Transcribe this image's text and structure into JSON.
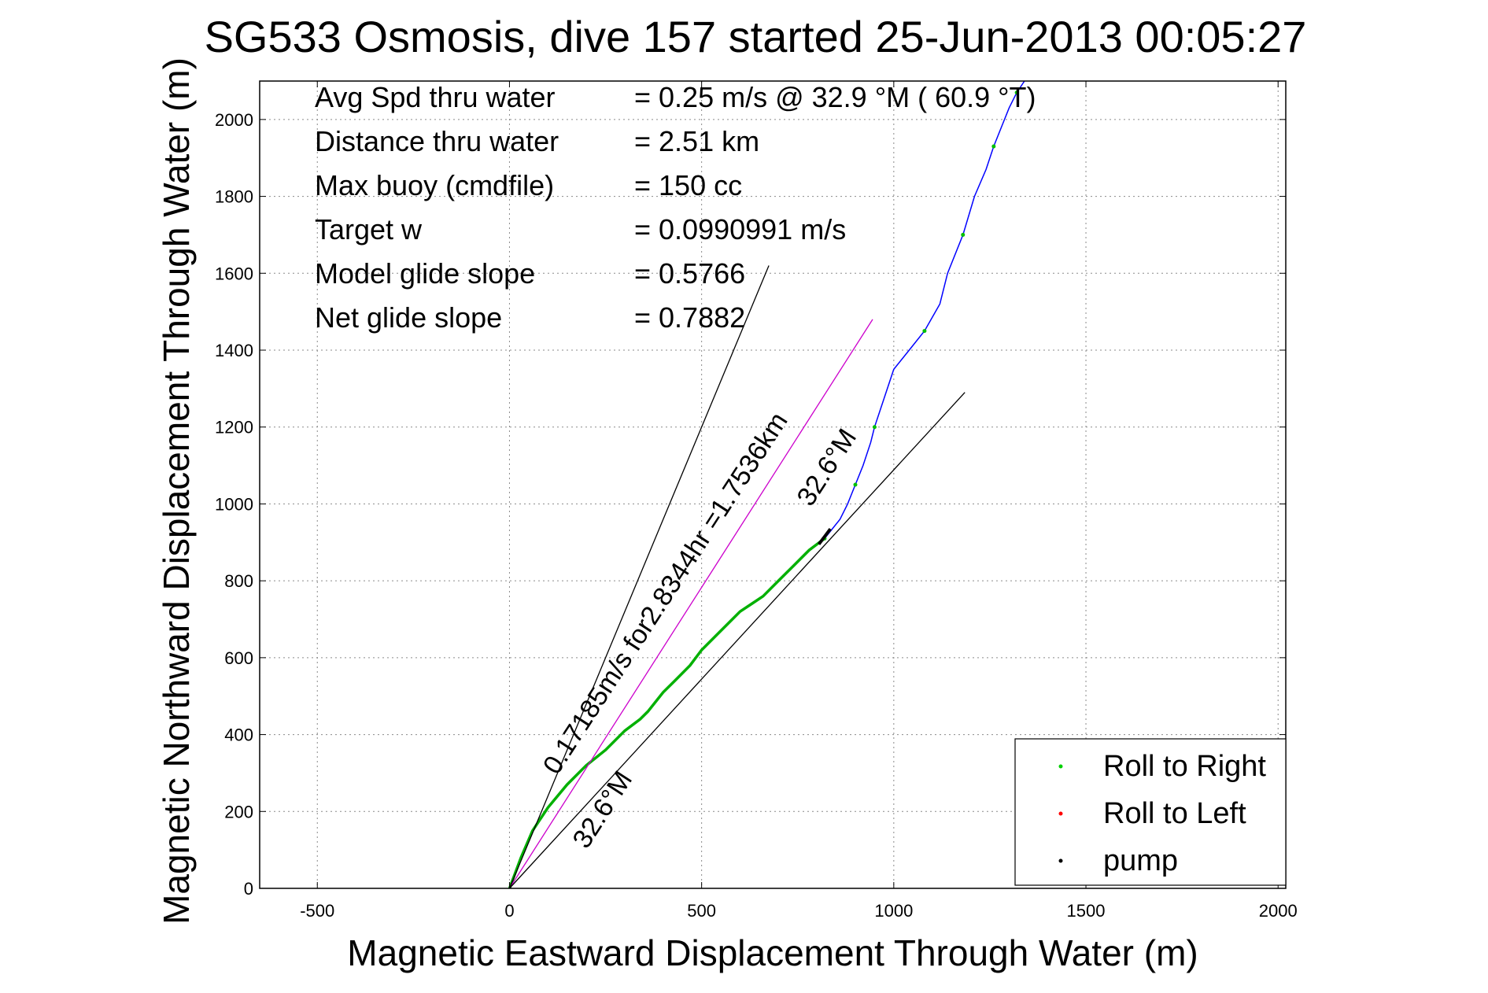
{
  "chart_data": {
    "type": "line",
    "title": "SG533 Osmosis, dive 157 started 25-Jun-2013 00:05:27",
    "xlabel": "Magnetic Eastward Displacement Through Water (m)",
    "ylabel": "Magnetic Northward Displacement Through Water (m)",
    "xlim": [
      -650,
      2020
    ],
    "ylim": [
      0,
      2100
    ],
    "xticks": [
      -500,
      0,
      500,
      1000,
      1500,
      2000
    ],
    "yticks": [
      0,
      200,
      400,
      600,
      800,
      1000,
      1200,
      1400,
      1600,
      1800,
      2000
    ],
    "grid": true,
    "stats": [
      {
        "label": "Avg Spd thru water",
        "value": "=  0.25 m/s @  32.9 °M ( 60.9 °T)"
      },
      {
        "label": "Distance thru water",
        "value": "=  2.51 km"
      },
      {
        "label": "Max buoy (cmdfile)",
        "value": "= 150 cc"
      },
      {
        "label": "Target w",
        "value": "= 0.0990991 m/s"
      },
      {
        "label": "Model glide slope",
        "value": "= 0.5766"
      },
      {
        "label": "Net glide slope",
        "value": "= 0.7882"
      }
    ],
    "annotations": [
      {
        "text": "0.17185m/s for2.8344hr =1.7536km",
        "angle_deg": -57
      },
      {
        "text": "32.6°M",
        "angle_deg": -57
      },
      {
        "text": "32.6°M",
        "angle_deg": -57
      }
    ],
    "series": [
      {
        "name": "",
        "color": "#00b000",
        "x": [
          0,
          30,
          60,
          100,
          150,
          200,
          250,
          300,
          340,
          360,
          400,
          430,
          470,
          500,
          540,
          580,
          600,
          630,
          660,
          700,
          740,
          780,
          820
        ],
        "y": [
          0,
          80,
          150,
          210,
          270,
          320,
          360,
          410,
          440,
          460,
          510,
          540,
          580,
          620,
          660,
          700,
          720,
          740,
          760,
          800,
          840,
          880,
          910
        ]
      },
      {
        "name": "",
        "color": "#0000ff",
        "x": [
          820,
          860,
          880,
          900,
          920,
          940,
          950,
          1000,
          1040,
          1080,
          1120,
          1140,
          1180,
          1210,
          1240,
          1260,
          1280,
          1300,
          1320,
          1340
        ],
        "y": [
          910,
          960,
          1000,
          1050,
          1100,
          1160,
          1200,
          1350,
          1400,
          1450,
          1520,
          1600,
          1700,
          1800,
          1870,
          1930,
          1980,
          2030,
          2070,
          2100
        ]
      },
      {
        "name": "",
        "color": "#cc00cc",
        "x": [
          0,
          945
        ],
        "y": [
          0,
          1480
        ]
      },
      {
        "name": "",
        "color": "#000000",
        "x": [
          0,
          675
        ],
        "y": [
          0,
          1620
        ]
      },
      {
        "name": "",
        "color": "#000000",
        "x": [
          0,
          1185
        ],
        "y": [
          0,
          1290
        ]
      }
    ],
    "legend": {
      "position": "bottom-right",
      "entries": [
        {
          "label": "Roll to Right",
          "color": "#00d000"
        },
        {
          "label": "Roll to Left",
          "color": "#ff0000"
        },
        {
          "label": "pump",
          "color": "#000000"
        }
      ]
    }
  }
}
